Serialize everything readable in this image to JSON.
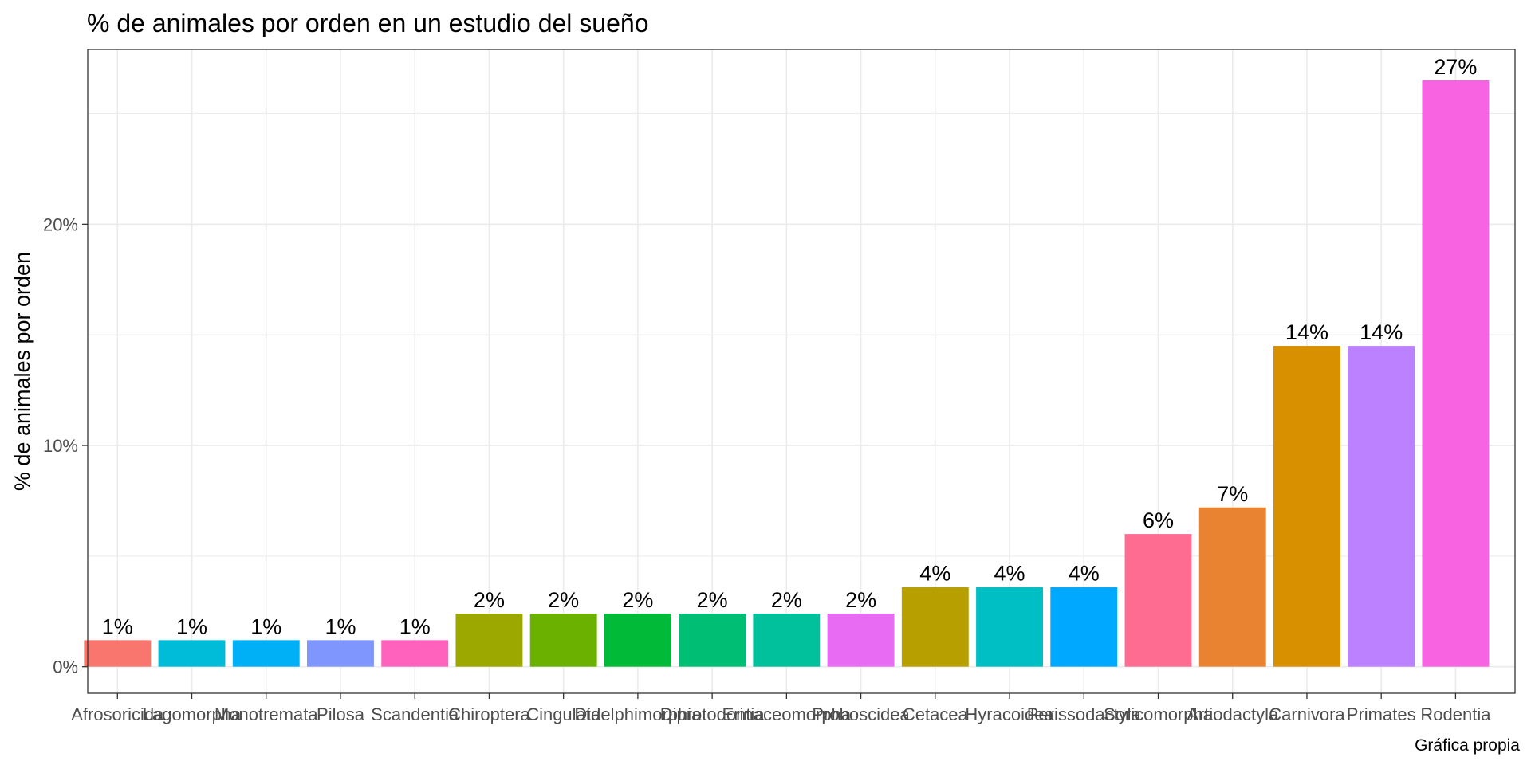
{
  "chart_data": {
    "type": "bar",
    "title": "% de animales por orden en un estudio del sueño",
    "xlabel": "",
    "ylabel": "% de animales por orden",
    "caption": "Gráfica propia",
    "ylim": [
      -1.2,
      27.9
    ],
    "yticks": [
      0,
      10,
      20
    ],
    "ytick_labels": [
      "0%",
      "10%",
      "20%"
    ],
    "grid": true,
    "legend": "none",
    "categories": [
      "Afrosoricida",
      "Lagomorpha",
      "Monotremata",
      "Pilosa",
      "Scandentia",
      "Chiroptera",
      "Cingulata",
      "Didelphimorphia",
      "Diprotodontia",
      "Erinaceomorpha",
      "Proboscidea",
      "Cetacea",
      "Hyracoidea",
      "Perissodactyla",
      "Soricomorpha",
      "Artiodactyla",
      "Carnivora",
      "Primates",
      "Rodentia"
    ],
    "values": [
      1.2,
      1.2,
      1.2,
      1.2,
      1.2,
      2.4,
      2.4,
      2.4,
      2.4,
      2.4,
      2.4,
      3.6,
      3.6,
      3.6,
      6.0,
      7.2,
      14.5,
      14.5,
      26.5
    ],
    "value_labels": [
      "1%",
      "1%",
      "1%",
      "1%",
      "1%",
      "2%",
      "2%",
      "2%",
      "2%",
      "2%",
      "2%",
      "4%",
      "4%",
      "4%",
      "6%",
      "7%",
      "14%",
      "14%",
      "27%"
    ],
    "colors": [
      "#F8766D",
      "#00BCD8",
      "#00B0F6",
      "#7F96FF",
      "#FF62BC",
      "#9CA700",
      "#6BB100",
      "#00BA38",
      "#00BF74",
      "#00C19C",
      "#E76BF3",
      "#B79F00",
      "#00BFC4",
      "#00A9FF",
      "#FF6C91",
      "#EA8331",
      "#D89000",
      "#BB81FF",
      "#F763E0"
    ]
  }
}
